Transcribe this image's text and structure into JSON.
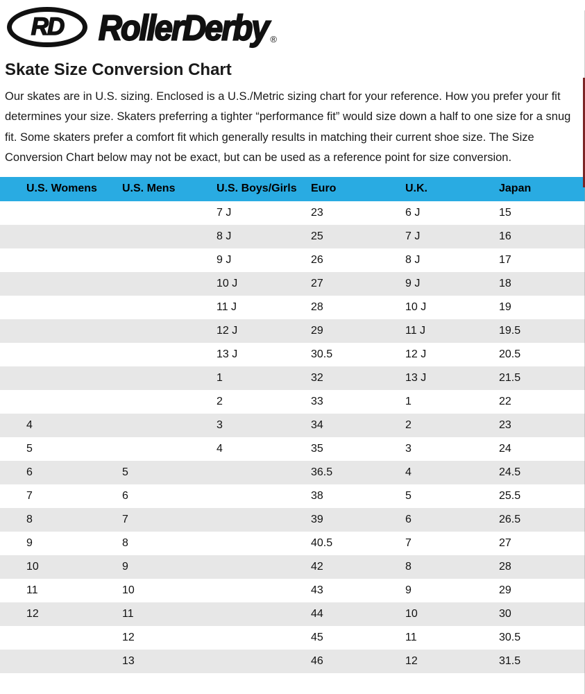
{
  "logo": {
    "monogram": "RD",
    "wordmark": "RollerDerby",
    "registered": "®"
  },
  "heading": "Skate Size Conversion Chart",
  "intro": "Our skates are in U.S. sizing. Enclosed is a U.S./Metric sizing chart for your reference. How you prefer your fit determines your size. Skaters preferring a tighter “performance fit” would size down a half to one size for a snug fit. Some skaters prefer a comfort fit which generally results in matching their current shoe size. The Size Conversion Chart below may not be exact, but can be used as a reference point for size conversion.",
  "colors": {
    "table_header_bg": "#29ABE2",
    "row_alt_bg": "#E7E7E7",
    "edge_marker": "#7D2626",
    "text": "#1A1A1A"
  },
  "table": {
    "headers": [
      "U.S. Womens",
      "U.S. Mens",
      "U.S. Boys/Girls",
      "Euro",
      "U.K.",
      "Japan"
    ],
    "rows": [
      [
        "",
        "",
        "7 J",
        "23",
        "6 J",
        "15"
      ],
      [
        "",
        "",
        "8 J",
        "25",
        "7 J",
        "16"
      ],
      [
        "",
        "",
        "9 J",
        "26",
        "8 J",
        "17"
      ],
      [
        "",
        "",
        "10 J",
        "27",
        "9 J",
        "18"
      ],
      [
        "",
        "",
        "11 J",
        "28",
        "10 J",
        "19"
      ],
      [
        "",
        "",
        "12 J",
        "29",
        "11 J",
        "19.5"
      ],
      [
        "",
        "",
        "13 J",
        "30.5",
        "12 J",
        "20.5"
      ],
      [
        "",
        "",
        "1",
        "32",
        "13 J",
        "21.5"
      ],
      [
        "",
        "",
        "2",
        "33",
        "1",
        "22"
      ],
      [
        "4",
        "",
        "3",
        "34",
        "2",
        "23"
      ],
      [
        "5",
        "",
        "4",
        "35",
        "3",
        "24"
      ],
      [
        "6",
        "5",
        "",
        "36.5",
        "4",
        "24.5"
      ],
      [
        "7",
        "6",
        "",
        "38",
        "5",
        "25.5"
      ],
      [
        "8",
        "7",
        "",
        "39",
        "6",
        "26.5"
      ],
      [
        "9",
        "8",
        "",
        "40.5",
        "7",
        "27"
      ],
      [
        "10",
        "9",
        "",
        "42",
        "8",
        "28"
      ],
      [
        "11",
        "10",
        "",
        "43",
        "9",
        "29"
      ],
      [
        "12",
        "11",
        "",
        "44",
        "10",
        "30"
      ],
      [
        "",
        "12",
        "",
        "45",
        "11",
        "30.5"
      ],
      [
        "",
        "13",
        "",
        "46",
        "12",
        "31.5"
      ]
    ]
  }
}
